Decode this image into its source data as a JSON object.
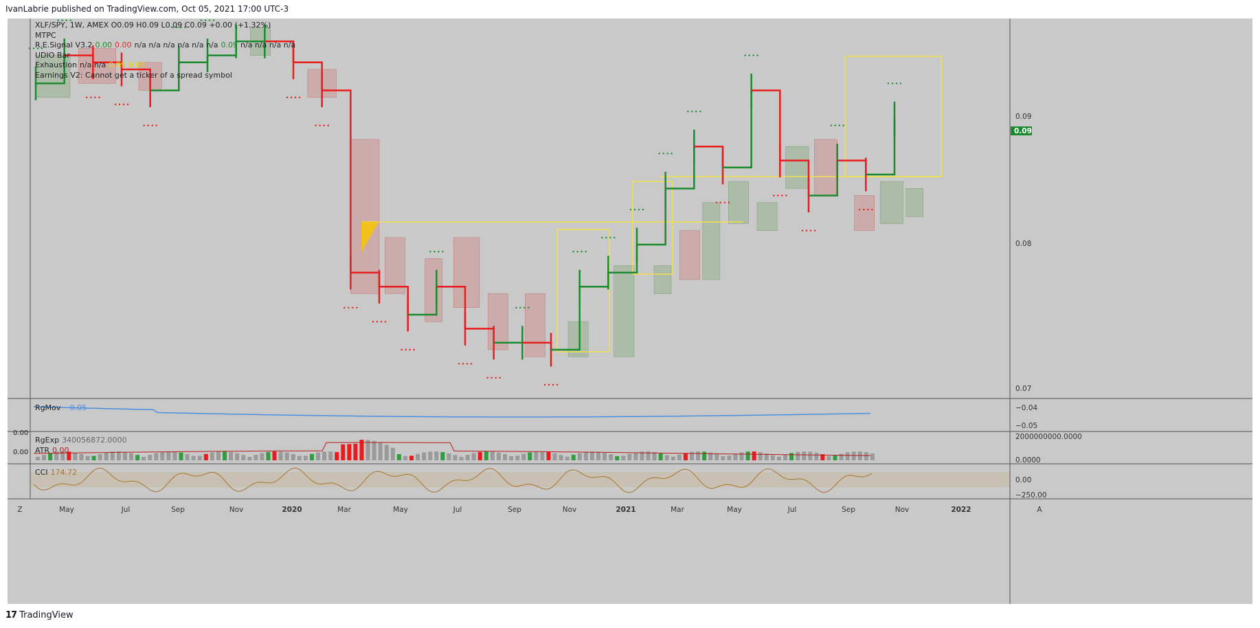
{
  "header": {
    "publisher_line": "IvanLabrie published on TradingView.com, Oct 05, 2021 17:00 UTC-3"
  },
  "footer": {
    "brand": "TradingView",
    "logo_glyph": "17"
  },
  "legend": {
    "symbol_line": "XLF/SPY, 1W, AMEX  O0.09  H0.09  L0.09  C0.09  +0.00 (+1.32%)",
    "mtpc": "MTPC",
    "re_signal": {
      "name": "R.E.Signal V3.2",
      "v1": "0.00",
      "v2": "0.00",
      "rest": "n/a  n/a  n/a  n/a  n/a  n/a",
      "v3": "0.09",
      "rest2": "n/a  n/a  n/a  n/a"
    },
    "udio": "UDIO Bar",
    "exhaustion": {
      "name": "Exhaustion",
      "rest": "n/a  n/a",
      "v1": "0.09",
      "v2": "0.09"
    },
    "earnings": "Earnings V2: Cannot get a ticker of a spread symbol"
  },
  "price_axis": {
    "ticks": [
      "0.09",
      "0.08",
      "0.07"
    ],
    "last_price": "0.09",
    "last_color": "#1b8a2e"
  },
  "time_axis": {
    "labels": [
      "May",
      "Jul",
      "Sep",
      "Nov",
      "2020",
      "Mar",
      "May",
      "Jul",
      "Sep",
      "Nov",
      "2021",
      "Mar",
      "May",
      "Jul",
      "Sep",
      "Nov",
      "2022"
    ],
    "left_btn": "Z",
    "right_btn": "A"
  },
  "panes": {
    "rgmov": {
      "name": "RgMov",
      "value": "−0.05",
      "ticks": [
        "−0.04",
        "−0.05"
      ],
      "color": "#4a90e2"
    },
    "rgexp": {
      "name": "RgExp",
      "value": "340056872.0000",
      "ticks": [
        "2000000000.0000",
        "0.0000"
      ],
      "left_vals": [
        "0.00",
        "0.00"
      ]
    },
    "atr": {
      "name": "ATR",
      "value": "0.00",
      "color": "#b71c1c"
    },
    "cci": {
      "name": "CCI",
      "value": "174.72",
      "ticks": [
        "0.00",
        "−250.00"
      ],
      "color": "#a8742a"
    }
  },
  "chart_data": {
    "type": "line",
    "series": [
      {
        "name": "XLF/SPY",
        "x": [
          "2019-04",
          "2019-05",
          "2019-06",
          "2019-07",
          "2019-08",
          "2019-09",
          "2019-10",
          "2019-11",
          "2019-12",
          "2020-01",
          "2020-02",
          "2020-03",
          "2020-04",
          "2020-05",
          "2020-06",
          "2020-07",
          "2020-08",
          "2020-09",
          "2020-10",
          "2020-11",
          "2020-12",
          "2021-01",
          "2021-02",
          "2021-03",
          "2021-04",
          "2021-05",
          "2021-06",
          "2021-07",
          "2021-08",
          "2021-09",
          "2021-10"
        ],
        "values": [
          0.0915,
          0.0935,
          0.093,
          0.0925,
          0.091,
          0.093,
          0.0935,
          0.0945,
          0.0945,
          0.093,
          0.091,
          0.078,
          0.077,
          0.075,
          0.077,
          0.074,
          0.073,
          0.073,
          0.0725,
          0.077,
          0.078,
          0.08,
          0.084,
          0.087,
          0.0855,
          0.091,
          0.086,
          0.0835,
          0.086,
          0.085,
          0.089
        ]
      }
    ],
    "ylim": [
      0.07,
      0.095
    ],
    "grid": false
  }
}
